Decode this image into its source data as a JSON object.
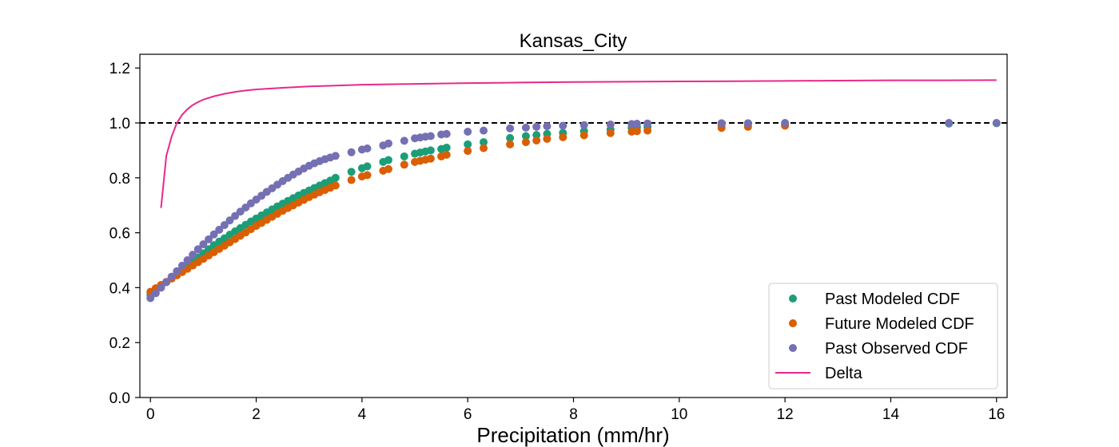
{
  "chart_data": {
    "type": "scatter",
    "title": "Kansas_City",
    "xlabel": "Precipitation (mm/hr)",
    "ylabel": "",
    "xlim": [
      -0.2,
      16.2
    ],
    "ylim": [
      0.0,
      1.25
    ],
    "xticks": [
      0,
      2,
      4,
      6,
      8,
      10,
      12,
      14,
      16
    ],
    "yticks": [
      0.0,
      0.2,
      0.4,
      0.6,
      0.8,
      1.0,
      1.2
    ],
    "xtick_labels": [
      "0",
      "2",
      "4",
      "6",
      "8",
      "10",
      "12",
      "14",
      "16"
    ],
    "ytick_labels": [
      "0.0",
      "0.2",
      "0.4",
      "0.6",
      "0.8",
      "1.0",
      "1.2"
    ],
    "grid": false,
    "legend_position": "bottom-right",
    "reference_line": {
      "y": 1.0,
      "style": "dashed",
      "color": "#000000"
    },
    "series": [
      {
        "name": "Past Modeled CDF",
        "kind": "scatter",
        "color": "#1b9e77",
        "x": [
          0,
          0.1,
          0.2,
          0.3,
          0.4,
          0.5,
          0.6,
          0.7,
          0.8,
          0.9,
          1.0,
          1.1,
          1.2,
          1.3,
          1.4,
          1.5,
          1.6,
          1.7,
          1.8,
          1.9,
          2.0,
          2.1,
          2.2,
          2.3,
          2.4,
          2.5,
          2.6,
          2.7,
          2.8,
          2.9,
          3.0,
          3.1,
          3.2,
          3.3,
          3.4,
          3.5,
          3.8,
          4.0,
          4.1,
          4.4,
          4.5,
          4.8,
          5.0,
          5.1,
          5.2,
          5.3,
          5.5,
          5.6,
          6.0,
          6.3,
          6.8,
          7.1,
          7.3,
          7.5,
          7.8,
          8.2,
          8.7,
          9.1,
          9.2,
          9.4,
          10.8,
          11.3,
          12.0,
          15.1,
          16.0
        ],
        "y": [
          0.375,
          0.39,
          0.405,
          0.42,
          0.435,
          0.45,
          0.465,
          0.48,
          0.495,
          0.51,
          0.525,
          0.54,
          0.555,
          0.568,
          0.58,
          0.593,
          0.605,
          0.617,
          0.629,
          0.641,
          0.652,
          0.663,
          0.674,
          0.685,
          0.696,
          0.706,
          0.716,
          0.726,
          0.736,
          0.745,
          0.754,
          0.763,
          0.772,
          0.781,
          0.79,
          0.8,
          0.822,
          0.835,
          0.842,
          0.858,
          0.865,
          0.878,
          0.888,
          0.892,
          0.896,
          0.9,
          0.905,
          0.91,
          0.922,
          0.93,
          0.945,
          0.952,
          0.956,
          0.96,
          0.964,
          0.97,
          0.976,
          0.982,
          0.984,
          0.986,
          0.992,
          0.994,
          0.996,
          0.998,
          0.999
        ]
      },
      {
        "name": "Future Modeled CDF",
        "kind": "scatter",
        "color": "#d95f02",
        "x": [
          0,
          0.1,
          0.2,
          0.3,
          0.4,
          0.5,
          0.6,
          0.7,
          0.8,
          0.9,
          1.0,
          1.1,
          1.2,
          1.3,
          1.4,
          1.5,
          1.6,
          1.7,
          1.8,
          1.9,
          2.0,
          2.1,
          2.2,
          2.3,
          2.4,
          2.5,
          2.6,
          2.7,
          2.8,
          2.9,
          3.0,
          3.1,
          3.2,
          3.3,
          3.4,
          3.5,
          3.8,
          4.0,
          4.1,
          4.4,
          4.5,
          4.8,
          5.0,
          5.1,
          5.2,
          5.3,
          5.5,
          5.6,
          6.0,
          6.3,
          6.8,
          7.1,
          7.3,
          7.5,
          7.8,
          8.2,
          8.7,
          9.1,
          9.2,
          9.4,
          10.8,
          11.3,
          12.0
        ],
        "y": [
          0.385,
          0.398,
          0.41,
          0.421,
          0.433,
          0.445,
          0.457,
          0.469,
          0.481,
          0.493,
          0.505,
          0.517,
          0.529,
          0.541,
          0.553,
          0.565,
          0.577,
          0.589,
          0.601,
          0.613,
          0.625,
          0.636,
          0.647,
          0.658,
          0.669,
          0.68,
          0.69,
          0.7,
          0.71,
          0.72,
          0.73,
          0.739,
          0.748,
          0.756,
          0.764,
          0.772,
          0.792,
          0.805,
          0.81,
          0.826,
          0.832,
          0.848,
          0.858,
          0.862,
          0.866,
          0.87,
          0.878,
          0.884,
          0.898,
          0.908,
          0.922,
          0.93,
          0.936,
          0.942,
          0.948,
          0.955,
          0.963,
          0.968,
          0.97,
          0.972,
          0.982,
          0.986,
          0.99
        ]
      },
      {
        "name": "Past Observed CDF",
        "kind": "scatter",
        "color": "#7570b3",
        "x": [
          0,
          0.1,
          0.2,
          0.3,
          0.4,
          0.5,
          0.6,
          0.7,
          0.8,
          0.9,
          1.0,
          1.1,
          1.2,
          1.3,
          1.4,
          1.5,
          1.6,
          1.7,
          1.8,
          1.9,
          2.0,
          2.1,
          2.2,
          2.3,
          2.4,
          2.5,
          2.6,
          2.7,
          2.8,
          2.9,
          3.0,
          3.1,
          3.2,
          3.3,
          3.4,
          3.5,
          3.8,
          4.0,
          4.1,
          4.4,
          4.5,
          4.8,
          5.0,
          5.1,
          5.2,
          5.3,
          5.5,
          5.6,
          6.0,
          6.3,
          6.8,
          7.1,
          7.3,
          7.5,
          7.8,
          8.2,
          8.7,
          9.1,
          9.2,
          9.4,
          10.8,
          11.3,
          12.0,
          15.1,
          16.0
        ],
        "y": [
          0.362,
          0.38,
          0.4,
          0.42,
          0.44,
          0.46,
          0.48,
          0.5,
          0.52,
          0.54,
          0.558,
          0.576,
          0.594,
          0.611,
          0.628,
          0.645,
          0.661,
          0.677,
          0.692,
          0.707,
          0.721,
          0.735,
          0.749,
          0.762,
          0.775,
          0.788,
          0.8,
          0.812,
          0.823,
          0.834,
          0.844,
          0.853,
          0.861,
          0.868,
          0.874,
          0.88,
          0.893,
          0.903,
          0.907,
          0.918,
          0.925,
          0.935,
          0.944,
          0.947,
          0.95,
          0.952,
          0.958,
          0.96,
          0.968,
          0.972,
          0.98,
          0.983,
          0.986,
          0.988,
          0.99,
          0.992,
          0.994,
          0.996,
          0.997,
          0.998,
          0.999,
          0.999,
          1.0,
          1.0,
          1.0
        ]
      },
      {
        "name": "Delta",
        "kind": "line",
        "color": "#e7298a",
        "x": [
          0.2,
          0.3,
          0.4,
          0.5,
          0.6,
          0.7,
          0.8,
          0.9,
          1.0,
          1.2,
          1.4,
          1.6,
          1.8,
          2.0,
          2.5,
          3.0,
          3.5,
          4.0,
          5.0,
          6.0,
          7.0,
          8.0,
          9.0,
          10.0,
          11.0,
          12.0,
          13.0,
          14.0,
          15.0,
          16.0
        ],
        "y": [
          0.69,
          0.88,
          0.95,
          1.0,
          1.03,
          1.05,
          1.065,
          1.076,
          1.085,
          1.097,
          1.106,
          1.113,
          1.118,
          1.122,
          1.128,
          1.133,
          1.136,
          1.139,
          1.142,
          1.145,
          1.147,
          1.149,
          1.15,
          1.151,
          1.152,
          1.153,
          1.154,
          1.155,
          1.155,
          1.156
        ]
      }
    ]
  }
}
